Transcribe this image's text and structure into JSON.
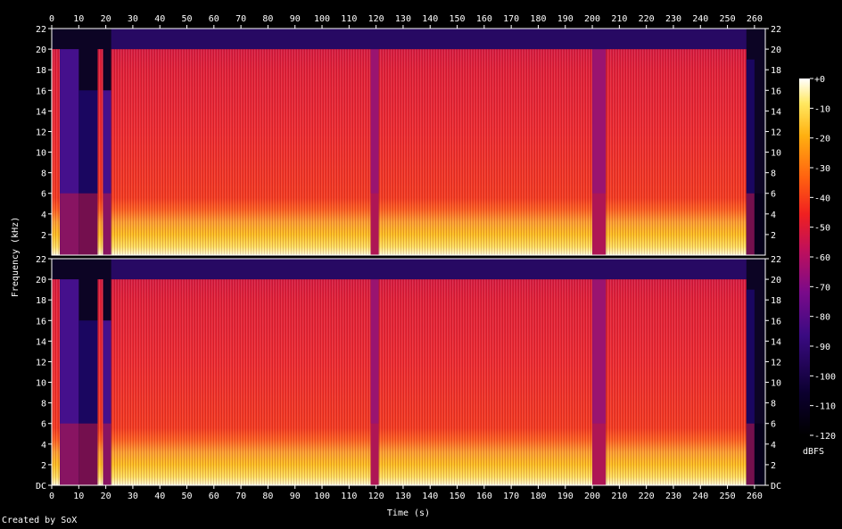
{
  "chart_data": {
    "type": "heatmap",
    "title": "",
    "xlabel": "Time (s)",
    "ylabel": "Frequency (kHz)",
    "x_ticks": [
      0,
      10,
      20,
      30,
      40,
      50,
      60,
      70,
      80,
      90,
      100,
      110,
      120,
      130,
      140,
      150,
      160,
      170,
      180,
      190,
      200,
      210,
      220,
      230,
      240,
      250,
      260
    ],
    "xlim": [
      0,
      264
    ],
    "y_ticks_top": [
      "2",
      "4",
      "6",
      "8",
      "10",
      "12",
      "14",
      "16",
      "18",
      "20",
      "22"
    ],
    "y_ticks_bottom": [
      "DC",
      "2",
      "4",
      "6",
      "8",
      "10",
      "12",
      "14",
      "16",
      "18",
      "20",
      "22"
    ],
    "ylim": [
      0,
      22
    ],
    "channels": 2,
    "colorbar": {
      "label": "dBFS",
      "ticks": [
        "+0",
        "-10",
        "-20",
        "-30",
        "-40",
        "-50",
        "-60",
        "-70",
        "-80",
        "-90",
        "-100",
        "-110",
        "-120"
      ],
      "range": [
        -120,
        0
      ]
    },
    "segments": [
      {
        "t0": 0,
        "t1": 3,
        "level": -50,
        "cutoff": 20
      },
      {
        "t0": 3,
        "t1": 10,
        "level": -80,
        "cutoff": 20
      },
      {
        "t0": 10,
        "t1": 17,
        "level": -95,
        "cutoff": 16
      },
      {
        "t0": 17,
        "t1": 19,
        "level": -60,
        "cutoff": 20
      },
      {
        "t0": 19,
        "t1": 22,
        "level": -85,
        "cutoff": 16
      },
      {
        "t0": 22,
        "t1": 118,
        "level": -52,
        "cutoff": 20
      },
      {
        "t0": 118,
        "t1": 121,
        "level": -62,
        "cutoff": 20
      },
      {
        "t0": 121,
        "t1": 200,
        "level": -52,
        "cutoff": 20
      },
      {
        "t0": 200,
        "t1": 205,
        "level": -65,
        "cutoff": 20
      },
      {
        "t0": 205,
        "t1": 257,
        "level": -52,
        "cutoff": 20
      },
      {
        "t0": 257,
        "t1": 260,
        "level": -95,
        "cutoff": 19
      },
      {
        "t0": 260,
        "t1": 264,
        "level": -115,
        "cutoff": 6
      }
    ]
  },
  "footer": {
    "credit": "Created by SoX"
  }
}
